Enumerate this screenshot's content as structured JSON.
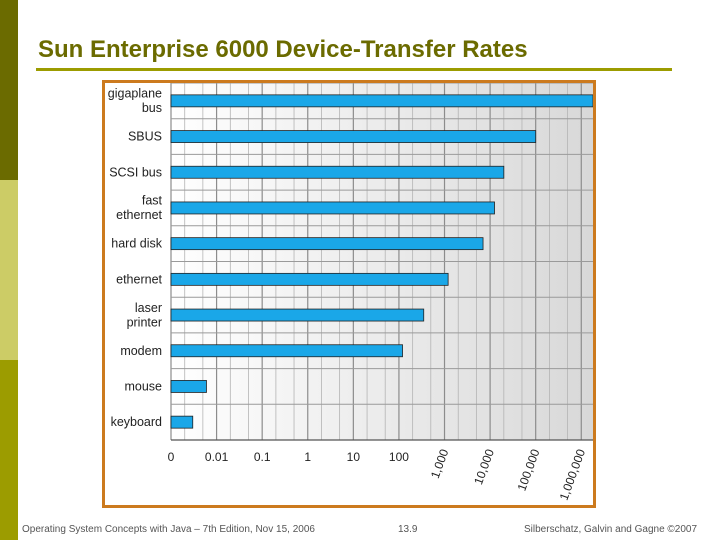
{
  "slide": {
    "title": "Sun Enterprise 6000 Device-Transfer Rates",
    "footer_left": "Operating System Concepts with Java – 7th Edition, Nov 15, 2006",
    "footer_center": "13.9",
    "footer_right": "Silberschatz, Galvin and Gagne ©2007"
  },
  "colors": {
    "accent": "#6b6b00",
    "frame": "#cc7a1e",
    "bar": "#1aa7e8"
  },
  "chart_data": {
    "type": "bar",
    "orientation": "horizontal",
    "scale": "log",
    "categories": [
      [
        "gigaplane",
        "bus"
      ],
      [
        "SBUS"
      ],
      [
        "SCSI bus"
      ],
      [
        "fast",
        "ethernet"
      ],
      [
        "hard disk"
      ],
      [
        "ethernet"
      ],
      [
        "laser",
        "printer"
      ],
      [
        "modem"
      ],
      [
        "mouse"
      ],
      [
        "keyboard"
      ]
    ],
    "values": [
      2000000,
      100000,
      20000,
      12500,
      7000,
      1200,
      350,
      120,
      0.006,
      0.003
    ],
    "x_ticks": [
      {
        "label": "0",
        "value": 0.001,
        "rotated": false
      },
      {
        "label": "0.01",
        "value": 0.01,
        "rotated": false
      },
      {
        "label": "0.1",
        "value": 0.1,
        "rotated": false
      },
      {
        "label": "1",
        "value": 1,
        "rotated": false
      },
      {
        "label": "10",
        "value": 10,
        "rotated": false
      },
      {
        "label": "100",
        "value": 100,
        "rotated": false
      },
      {
        "label": "1,000",
        "value": 1000,
        "rotated": true
      },
      {
        "label": "10,000",
        "value": 10000,
        "rotated": true
      },
      {
        "label": "100,000",
        "value": 100000,
        "rotated": true
      },
      {
        "label": "1,000,000",
        "value": 1000000,
        "rotated": true
      }
    ],
    "xlim": [
      0.001,
      2000000
    ],
    "grid": true
  }
}
